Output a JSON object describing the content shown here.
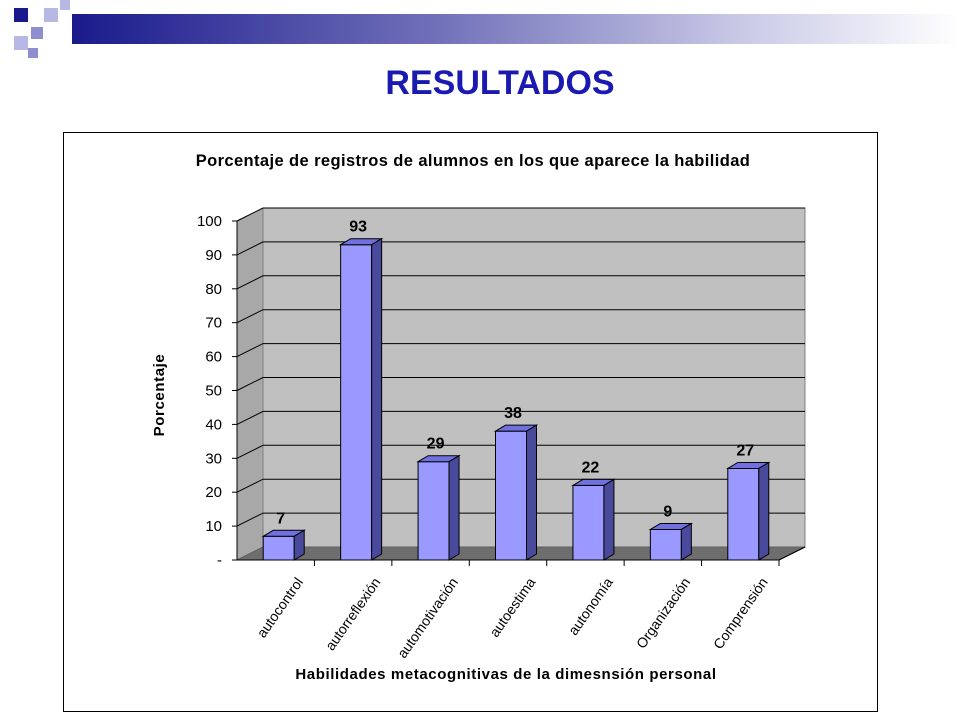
{
  "slide": {
    "title": "RESULTADOS",
    "accent_color": "#1a1a8c",
    "title_color": "#1a1ab0"
  },
  "chart_data": {
    "type": "bar",
    "title": "Porcentaje  de registros de alumnos en los que aparece la habilidad",
    "xlabel": "Habilidades metacognitivas de la dimesnsión personal",
    "ylabel": "Porcentaje",
    "categories": [
      "autocontrol",
      "autorreflexión",
      "automotivación",
      "autoestima",
      "autonomía",
      "Organización",
      "Comprensión"
    ],
    "values": [
      7,
      93,
      29,
      38,
      22,
      9,
      27
    ],
    "ylim": [
      0,
      100
    ],
    "yticks": [
      "-",
      "10",
      "20",
      "30",
      "40",
      "50",
      "60",
      "70",
      "80",
      "90",
      "100"
    ],
    "grid": true,
    "legend": "none",
    "bar_color": "#9999ff",
    "plot_background": "#c0c0c0"
  }
}
